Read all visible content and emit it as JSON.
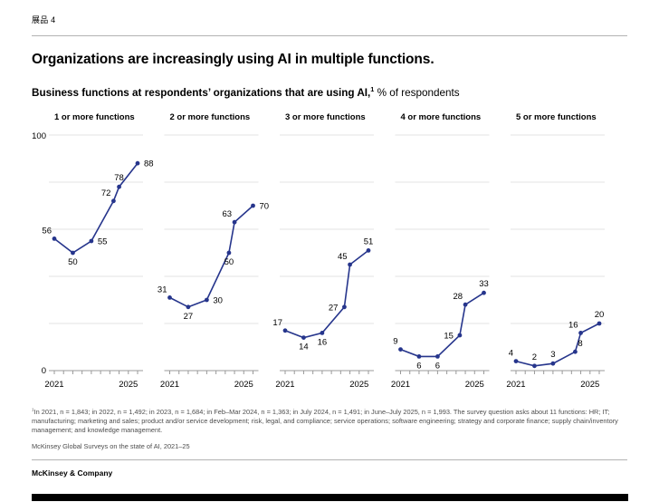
{
  "exhibit_label": "展品 4",
  "title": "Organizations are increasingly using AI in multiple functions.",
  "subtitle": {
    "bold": "Business functions at respondents’ organizations that are using AI,",
    "sup": "1",
    "rest": " % of respondents"
  },
  "chart_data": {
    "type": "line",
    "x_points": [
      2021,
      2022,
      2023,
      2024.2,
      2024.5,
      2025.5
    ],
    "x_tick_labels": [
      "2021",
      "2025"
    ],
    "ylim": [
      0,
      100
    ],
    "gridline_interval": 20,
    "y_axis_labels": {
      "top": "100",
      "bottom": "0"
    },
    "line_color": "#26358C",
    "panels": [
      {
        "title": "1 or more functions",
        "values": [
          56,
          50,
          55,
          72,
          78,
          88
        ]
      },
      {
        "title": "2 or more functions",
        "values": [
          31,
          27,
          30,
          50,
          63,
          70
        ]
      },
      {
        "title": "3 or more functions",
        "values": [
          17,
          14,
          16,
          27,
          45,
          51
        ]
      },
      {
        "title": "4 or more functions",
        "values": [
          9,
          6,
          6,
          15,
          28,
          33
        ]
      },
      {
        "title": "5 or more functions",
        "values": [
          4,
          2,
          3,
          8,
          16,
          20
        ]
      }
    ]
  },
  "footnote": {
    "sup": "1",
    "text": "In 2021, n = 1,843; in 2022, n = 1,492; in 2023, n = 1,684; in Feb–Mar 2024, n = 1,363; in July 2024, n = 1,491; in June–July 2025, n = 1,993. The survey question asks about 11 functions: HR; IT; manufacturing; marketing and sales; product and/or service development; risk, legal, and compliance; service operations; software engineering; strategy and corporate finance; supply chain/inventory management; and knowledge management."
  },
  "source": "McKinsey Global Surveys on the state of AI, 2021–25",
  "brand": "McKinsey & Company"
}
